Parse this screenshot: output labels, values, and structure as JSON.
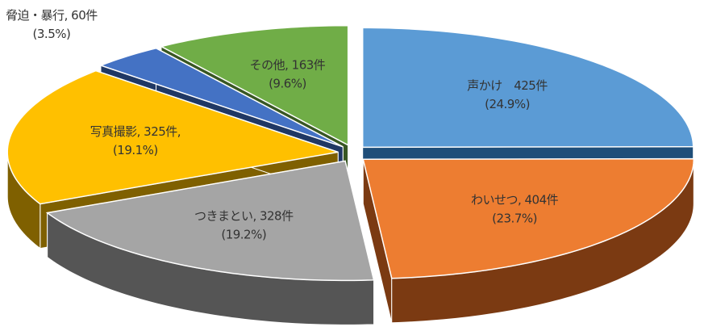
{
  "chart_data": {
    "type": "pie3d",
    "categories": [
      "声かけ　425件",
      "わいせつ, 404件",
      "つきまとい, 328件",
      "写真撮影, 325件,",
      "脅迫・暴行, 60件",
      "その他, 163件"
    ],
    "values": [
      425,
      404,
      328,
      325,
      60,
      163
    ],
    "percents": [
      24.9,
      23.7,
      19.2,
      19.1,
      3.5,
      9.6
    ],
    "value_labels": [
      "(24.9%)",
      "(23.7%)",
      "(19.2%)",
      "(19.1%)",
      "(3.5%)",
      "(9.6%)"
    ],
    "colors": [
      "#5b9bd5",
      "#ed7d31",
      "#a5a5a5",
      "#ffc000",
      "#4472c4",
      "#70ad47"
    ],
    "side_colors": [
      "#1f4e79",
      "#7b3a12",
      "#555555",
      "#7f6000",
      "#203864",
      "#385723"
    ]
  }
}
